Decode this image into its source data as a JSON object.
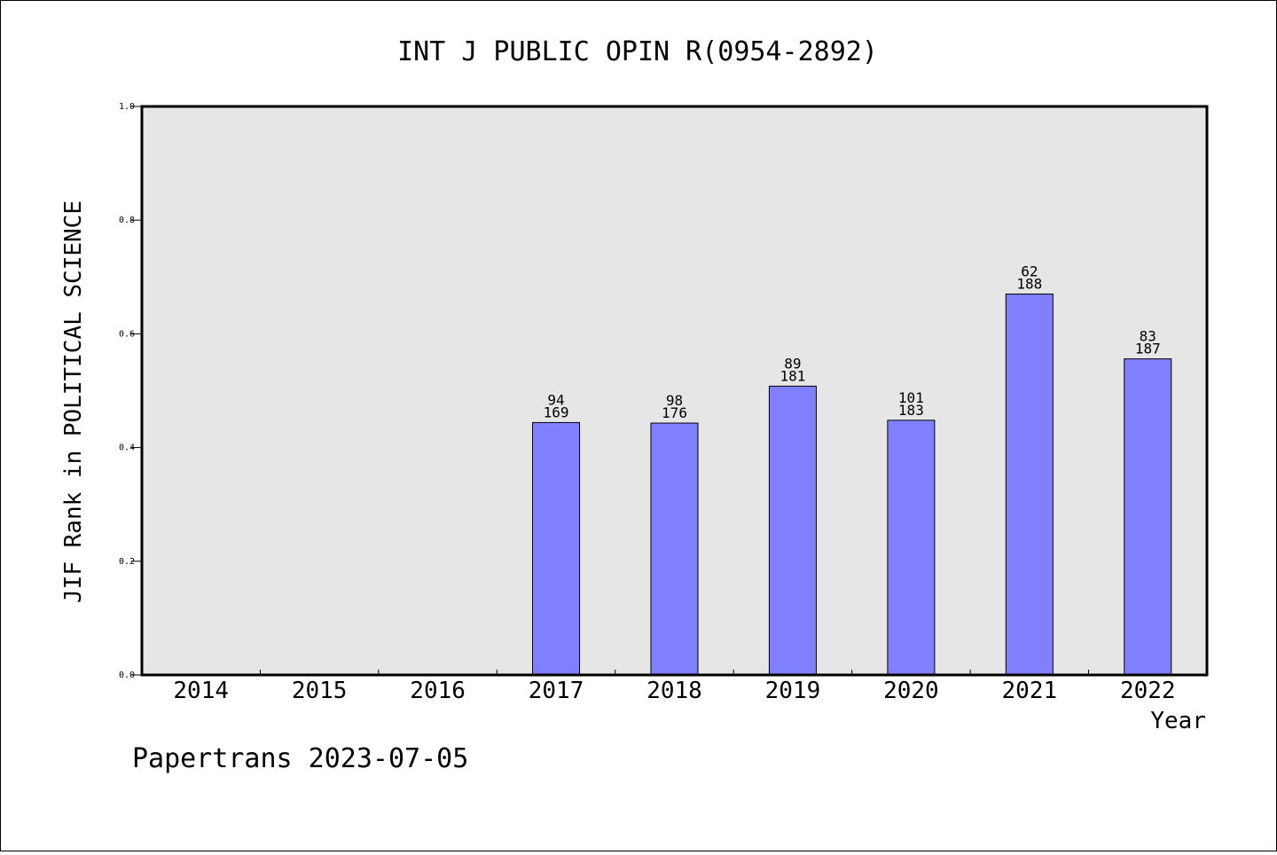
{
  "chart_data": {
    "type": "bar",
    "title": "INT J PUBLIC OPIN R(0954-2892)",
    "xlabel": "Year",
    "ylabel": "JIF Rank in POLITICAL SCIENCE",
    "ylim": [
      0,
      1.0
    ],
    "yticks": [
      "0.0",
      "0.2",
      "0.4",
      "0.6",
      "0.8",
      "1.0"
    ],
    "categories": [
      "2014",
      "2015",
      "2016",
      "2017",
      "2018",
      "2019",
      "2020",
      "2021",
      "2022"
    ],
    "bars": [
      {
        "year": "2017",
        "rank": "94",
        "total": "169",
        "value": 0.444
      },
      {
        "year": "2018",
        "rank": "98",
        "total": "176",
        "value": 0.443
      },
      {
        "year": "2019",
        "rank": "89",
        "total": "181",
        "value": 0.508
      },
      {
        "year": "2020",
        "rank": "101",
        "total": "183",
        "value": 0.448
      },
      {
        "year": "2021",
        "rank": "62",
        "total": "188",
        "value": 0.67
      },
      {
        "year": "2022",
        "rank": "83",
        "total": "187",
        "value": 0.556
      }
    ],
    "grid": false,
    "bar_color": "#8080ff",
    "plot_background": "#e6e6e6"
  },
  "footer": {
    "credit": "Papertrans 2023-07-05"
  }
}
